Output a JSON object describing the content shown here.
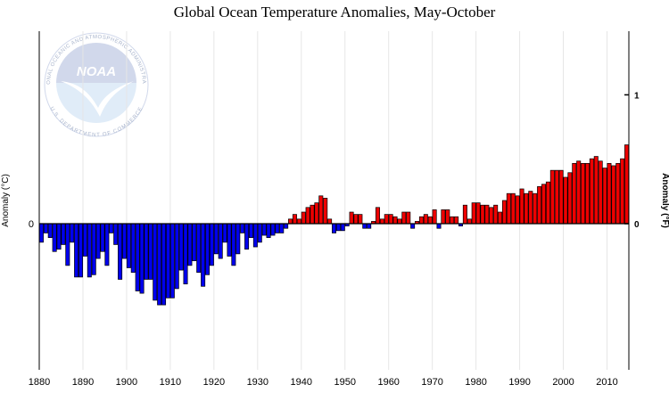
{
  "logo": {
    "word": "NOAA",
    "ring_top": "NATIONAL OCEANIC AND ATMOSPHERIC ADMINISTRATION",
    "ring_bottom": "U.S. DEPARTMENT OF COMMERCE",
    "colors": {
      "top": "#c9d2e8",
      "bottom": "#dbe9f7",
      "bird": "#ffffff"
    }
  },
  "chart_data": {
    "type": "bar",
    "title": "Global Ocean Temperature Anomalies, May-October",
    "ylabel_left": "Anomaly (°C)",
    "ylabel_right": "Anomaly (°F)",
    "left_tick_labels": [
      {
        "value": 0,
        "label": "0"
      }
    ],
    "right_tick_labels": [
      {
        "value_f": 0,
        "label": "0"
      },
      {
        "value_f": 1,
        "label": "1"
      }
    ],
    "x_tick_labels": [
      1880,
      1890,
      1900,
      1910,
      1920,
      1930,
      1940,
      1950,
      1960,
      1970,
      1980,
      1990,
      2000,
      2010
    ],
    "xlim": [
      1880,
      2014
    ],
    "ylim_c": [
      -0.63,
      0.83
    ],
    "grid": "vertical",
    "colors": {
      "positive": "#ee0000",
      "negative": "#0000ee",
      "outline": "#000000",
      "grid": "#e6e6e6"
    },
    "years": [
      1880,
      1881,
      1882,
      1883,
      1884,
      1885,
      1886,
      1887,
      1888,
      1889,
      1890,
      1891,
      1892,
      1893,
      1894,
      1895,
      1896,
      1897,
      1898,
      1899,
      1900,
      1901,
      1902,
      1903,
      1904,
      1905,
      1906,
      1907,
      1908,
      1909,
      1910,
      1911,
      1912,
      1913,
      1914,
      1915,
      1916,
      1917,
      1918,
      1919,
      1920,
      1921,
      1922,
      1923,
      1924,
      1925,
      1926,
      1927,
      1928,
      1929,
      1930,
      1931,
      1932,
      1933,
      1934,
      1935,
      1936,
      1937,
      1938,
      1939,
      1940,
      1941,
      1942,
      1943,
      1944,
      1945,
      1946,
      1947,
      1948,
      1949,
      1950,
      1951,
      1952,
      1953,
      1954,
      1955,
      1956,
      1957,
      1958,
      1959,
      1960,
      1961,
      1962,
      1963,
      1964,
      1965,
      1966,
      1967,
      1968,
      1969,
      1970,
      1971,
      1972,
      1973,
      1974,
      1975,
      1976,
      1977,
      1978,
      1979,
      1980,
      1981,
      1982,
      1983,
      1984,
      1985,
      1986,
      1987,
      1988,
      1989,
      1990,
      1991,
      1992,
      1993,
      1994,
      1995,
      1996,
      1997,
      1998,
      1999,
      2000,
      2001,
      2002,
      2003,
      2004,
      2005,
      2006,
      2007,
      2008,
      2009,
      2010,
      2011,
      2012,
      2013,
      2014
    ],
    "values": [
      -0.08,
      -0.04,
      -0.06,
      -0.12,
      -0.11,
      -0.09,
      -0.18,
      -0.08,
      -0.23,
      -0.23,
      -0.14,
      -0.23,
      -0.22,
      -0.15,
      -0.12,
      -0.18,
      -0.04,
      -0.09,
      -0.24,
      -0.15,
      -0.19,
      -0.21,
      -0.29,
      -0.3,
      -0.24,
      -0.24,
      -0.33,
      -0.35,
      -0.35,
      -0.32,
      -0.32,
      -0.28,
      -0.2,
      -0.26,
      -0.18,
      -0.16,
      -0.21,
      -0.27,
      -0.22,
      -0.18,
      -0.13,
      -0.15,
      -0.08,
      -0.14,
      -0.18,
      -0.13,
      -0.04,
      -0.11,
      -0.06,
      -0.1,
      -0.08,
      -0.05,
      -0.06,
      -0.05,
      -0.04,
      -0.04,
      -0.02,
      0.02,
      0.04,
      0.02,
      0.05,
      0.07,
      0.08,
      0.09,
      0.12,
      0.11,
      0.02,
      -0.04,
      -0.03,
      -0.03,
      -0.01,
      0.05,
      0.04,
      0.04,
      -0.02,
      -0.02,
      0.01,
      0.07,
      0.02,
      0.04,
      0.04,
      0.03,
      0.02,
      0.05,
      0.05,
      -0.02,
      0.01,
      0.03,
      0.04,
      0.03,
      0.06,
      -0.02,
      0.06,
      0.06,
      0.03,
      0.03,
      -0.01,
      0.08,
      0.02,
      0.09,
      0.09,
      0.08,
      0.08,
      0.07,
      0.08,
      0.05,
      0.1,
      0.13,
      0.13,
      0.12,
      0.15,
      0.13,
      0.14,
      0.13,
      0.16,
      0.17,
      0.18,
      0.23,
      0.23,
      0.23,
      0.2,
      0.22,
      0.26,
      0.27,
      0.26,
      0.26,
      0.28,
      0.29,
      0.27,
      0.24,
      0.26,
      0.25,
      0.26,
      0.28,
      0.34
    ]
  }
}
